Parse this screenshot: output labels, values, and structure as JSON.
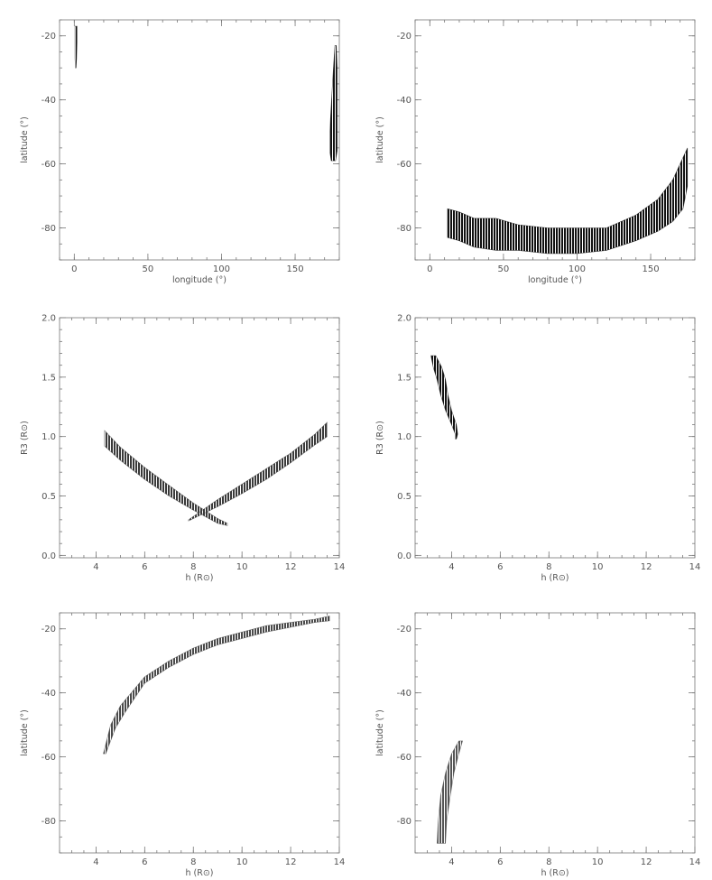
{
  "figure": {
    "layout": "3 rows x 2 columns"
  },
  "chart_data": [
    {
      "type": "scatter",
      "xlabel": "longitude (°)",
      "ylabel": "latitude (°)",
      "xlim": [
        -10,
        180
      ],
      "ylim": [
        -90,
        -15
      ],
      "xticks": [
        "0",
        "50",
        "100",
        "150"
      ],
      "yticks": [
        "-20",
        "-40",
        "-60",
        "-80"
      ],
      "color": "#111111",
      "regions": [
        {
          "left": [
            [
              0.5,
              -17
            ],
            [
              0.5,
              -22
            ],
            [
              0.5,
              -27
            ],
            [
              0.8,
              -30
            ]
          ],
          "right": [
            [
              1.8,
              -17
            ],
            [
              1.8,
              -22
            ],
            [
              1.6,
              -27
            ],
            [
              1.2,
              -30
            ]
          ]
        },
        {
          "left": [
            [
              177,
              -23
            ],
            [
              176,
              -30
            ],
            [
              175,
              -38
            ],
            [
              174,
              -46
            ],
            [
              173.5,
              -52
            ],
            [
              173.5,
              -56
            ],
            [
              174.5,
              -59
            ]
          ],
          "right": [
            [
              178,
              -23
            ],
            [
              178.5,
              -30
            ],
            [
              178.5,
              -38
            ],
            [
              178.5,
              -46
            ],
            [
              178.5,
              -52
            ],
            [
              178.5,
              -56
            ],
            [
              177.5,
              -59
            ]
          ]
        }
      ]
    },
    {
      "type": "scatter",
      "xlabel": "longitude (°)",
      "ylabel": "latitude (°)",
      "xlim": [
        -10,
        180
      ],
      "ylim": [
        -90,
        -15
      ],
      "xticks": [
        "0",
        "50",
        "100",
        "150"
      ],
      "yticks": [
        "-20",
        "-40",
        "-60",
        "-80"
      ],
      "color": "#111111",
      "regions": [
        {
          "left": [
            [
              12,
              -74
            ],
            [
              20,
              -75
            ],
            [
              30,
              -77
            ],
            [
              45,
              -77
            ],
            [
              60,
              -79
            ],
            [
              80,
              -80
            ],
            [
              100,
              -80
            ],
            [
              120,
              -80
            ],
            [
              140,
              -76
            ],
            [
              155,
              -71
            ],
            [
              165,
              -65
            ],
            [
              172,
              -58
            ],
            [
              175,
              -55
            ]
          ],
          "right": [
            [
              12,
              -83
            ],
            [
              20,
              -84
            ],
            [
              30,
              -86
            ],
            [
              45,
              -87
            ],
            [
              60,
              -87
            ],
            [
              80,
              -88
            ],
            [
              100,
              -88
            ],
            [
              120,
              -87
            ],
            [
              140,
              -84
            ],
            [
              155,
              -81
            ],
            [
              165,
              -78
            ],
            [
              172,
              -74
            ],
            [
              175,
              -67
            ]
          ]
        }
      ]
    },
    {
      "type": "scatter",
      "xlabel": "h (R⊙)",
      "ylabel": "R3 (R⊙)",
      "xlim": [
        2.5,
        14
      ],
      "ylim": [
        -0.02,
        2.0
      ],
      "xticks": [
        "4",
        "6",
        "8",
        "10",
        "12",
        "14"
      ],
      "yticks": [
        "0.0",
        "0.5",
        "1.0",
        "1.5",
        "2.0"
      ],
      "color": "#3a3a3a",
      "regions": [
        {
          "left": [
            [
              4.35,
              1.05
            ],
            [
              5.0,
              0.91
            ],
            [
              6.0,
              0.74
            ],
            [
              7.0,
              0.59
            ],
            [
              8.0,
              0.44
            ],
            [
              9.0,
              0.31
            ],
            [
              9.4,
              0.27
            ]
          ],
          "right": [
            [
              4.35,
              0.92
            ],
            [
              5.0,
              0.8
            ],
            [
              6.0,
              0.64
            ],
            [
              7.0,
              0.5
            ],
            [
              8.0,
              0.38
            ],
            [
              9.0,
              0.27
            ],
            [
              9.4,
              0.25
            ]
          ]
        },
        {
          "left": [
            [
              7.8,
              0.3
            ],
            [
              9.0,
              0.47
            ],
            [
              10.0,
              0.6
            ],
            [
              11.0,
              0.73
            ],
            [
              12.0,
              0.86
            ],
            [
              13.0,
              1.02
            ],
            [
              13.5,
              1.12
            ]
          ],
          "right": [
            [
              7.8,
              0.29
            ],
            [
              9.0,
              0.41
            ],
            [
              10.0,
              0.52
            ],
            [
              11.0,
              0.64
            ],
            [
              12.0,
              0.78
            ],
            [
              13.0,
              0.93
            ],
            [
              13.5,
              1.0
            ]
          ]
        }
      ]
    },
    {
      "type": "scatter",
      "xlabel": "h (R⊙)",
      "ylabel": "R3 (R⊙)",
      "xlim": [
        2.5,
        14
      ],
      "ylim": [
        -0.02,
        2.0
      ],
      "xticks": [
        "4",
        "6",
        "8",
        "10",
        "12",
        "14"
      ],
      "yticks": [
        "0.0",
        "0.5",
        "1.0",
        "1.5",
        "2.0"
      ],
      "color": "#111111",
      "regions": [
        {
          "left": [
            [
              3.15,
              1.68
            ],
            [
              3.25,
              1.58
            ],
            [
              3.4,
              1.48
            ],
            [
              3.55,
              1.35
            ],
            [
              3.75,
              1.22
            ],
            [
              4.0,
              1.1
            ],
            [
              4.15,
              1.02
            ],
            [
              4.15,
              0.98
            ]
          ],
          "right": [
            [
              3.35,
              1.68
            ],
            [
              3.6,
              1.58
            ],
            [
              3.75,
              1.48
            ],
            [
              3.85,
              1.35
            ],
            [
              4.0,
              1.22
            ],
            [
              4.2,
              1.1
            ],
            [
              4.25,
              1.02
            ],
            [
              4.2,
              0.98
            ]
          ]
        }
      ]
    },
    {
      "type": "scatter",
      "xlabel": "h (R⊙)",
      "ylabel": "latitude (°)",
      "xlim": [
        2.5,
        14
      ],
      "ylim": [
        -90,
        -15
      ],
      "xticks": [
        "4",
        "6",
        "8",
        "10",
        "12",
        "14"
      ],
      "yticks": [
        "-20",
        "-40",
        "-60",
        "-80"
      ],
      "color": "#4a4a4a",
      "regions": [
        {
          "left": [
            [
              4.3,
              -59
            ],
            [
              4.6,
              -50
            ],
            [
              5.0,
              -44
            ],
            [
              6.0,
              -35
            ],
            [
              7.0,
              -30
            ],
            [
              8.0,
              -26
            ],
            [
              9.0,
              -23
            ],
            [
              10.0,
              -21
            ],
            [
              11.0,
              -19
            ],
            [
              12.0,
              -18
            ],
            [
              13.0,
              -17
            ],
            [
              13.6,
              -16
            ]
          ],
          "right": [
            [
              4.4,
              -59
            ],
            [
              4.8,
              -51
            ],
            [
              5.2,
              -46
            ],
            [
              6.0,
              -37
            ],
            [
              7.0,
              -32
            ],
            [
              8.0,
              -28
            ],
            [
              9.0,
              -25
            ],
            [
              10.0,
              -23
            ],
            [
              11.0,
              -21
            ],
            [
              12.0,
              -19.5
            ],
            [
              13.0,
              -18
            ],
            [
              13.6,
              -17.5
            ]
          ]
        }
      ]
    },
    {
      "type": "scatter",
      "xlabel": "h (R⊙)",
      "ylabel": "latitude (°)",
      "xlim": [
        2.5,
        14
      ],
      "ylim": [
        -90,
        -15
      ],
      "xticks": [
        "4",
        "6",
        "8",
        "10",
        "12",
        "14"
      ],
      "yticks": [
        "-20",
        "-40",
        "-60",
        "-80"
      ],
      "color": "#555555",
      "regions": [
        {
          "left": [
            [
              3.4,
              -87
            ],
            [
              3.45,
              -80
            ],
            [
              3.55,
              -72
            ],
            [
              3.75,
              -65
            ],
            [
              4.0,
              -59
            ],
            [
              4.3,
              -55
            ]
          ],
          "right": [
            [
              3.75,
              -87
            ],
            [
              3.8,
              -80
            ],
            [
              3.95,
              -72
            ],
            [
              4.1,
              -65
            ],
            [
              4.3,
              -59
            ],
            [
              4.45,
              -55
            ]
          ]
        }
      ]
    }
  ]
}
